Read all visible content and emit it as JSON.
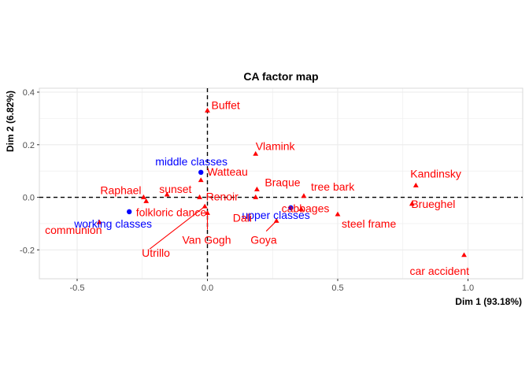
{
  "chart_data": {
    "type": "scatter",
    "title": "CA factor map",
    "xlabel": "Dim 1 (93.18%)",
    "ylabel": "Dim 2 (6.82%)",
    "xlim": [
      -0.645,
      1.21
    ],
    "ylim": [
      -0.31,
      0.415
    ],
    "x_ticks": [
      -0.5,
      0.0,
      0.5,
      1.0
    ],
    "x_tick_labels": [
      "-0.5",
      "0.0",
      "0.5",
      "1.0"
    ],
    "y_ticks": [
      -0.2,
      0.0,
      0.2,
      0.4
    ],
    "y_tick_labels": [
      "-0.2",
      "0.0",
      "0.2",
      "0.4"
    ],
    "grid": true,
    "reference_lines": {
      "x": 0,
      "y": 0,
      "style": "dashed"
    },
    "colors": {
      "rows": "#0000ff",
      "columns": "#ff0000",
      "grid": "#ebebeb",
      "panel_border": "#d9d9d9"
    },
    "series": [
      {
        "group": "rows",
        "marker": "circle",
        "points": [
          {
            "label": "middle classes",
            "x": -0.025,
            "y": 0.095
          },
          {
            "label": "working classes",
            "x": -0.3,
            "y": -0.055
          },
          {
            "label": "upper classes",
            "x": 0.32,
            "y": -0.04
          }
        ]
      },
      {
        "group": "columns",
        "marker": "triangle",
        "points": [
          {
            "label": "Buffet",
            "x": 0.0,
            "y": 0.33
          },
          {
            "label": "Vlamink",
            "x": 0.185,
            "y": 0.165
          },
          {
            "label": "Watteau",
            "x": -0.025,
            "y": 0.065
          },
          {
            "label": "Kandinsky",
            "x": 0.8,
            "y": 0.045
          },
          {
            "label": "Raphael",
            "x": -0.245,
            "y": 0.0
          },
          {
            "label": "sunset",
            "x": -0.155,
            "y": 0.01
          },
          {
            "label": "Renoir",
            "x": -0.03,
            "y": 0.0
          },
          {
            "label": "Braque",
            "x": 0.19,
            "y": 0.03
          },
          {
            "label": "tree bark",
            "x": 0.37,
            "y": 0.005
          },
          {
            "label": "Brueghel",
            "x": 0.785,
            "y": -0.025
          },
          {
            "label": "folkloric dance",
            "x": -0.235,
            "y": -0.015
          },
          {
            "label": "communion",
            "x": -0.415,
            "y": -0.095
          },
          {
            "label": "Van Gogh",
            "x": 0.0,
            "y": -0.06
          },
          {
            "label": "Utrillo",
            "x": -0.01,
            "y": -0.035
          },
          {
            "label": "Dali",
            "x": 0.185,
            "y": 0.0
          },
          {
            "label": "cabbages",
            "x": 0.36,
            "y": -0.045
          },
          {
            "label": "Goya",
            "x": 0.265,
            "y": -0.09
          },
          {
            "label": "steel frame",
            "x": 0.5,
            "y": -0.065
          },
          {
            "label": "car accident",
            "x": 0.985,
            "y": -0.22
          }
        ]
      }
    ]
  }
}
